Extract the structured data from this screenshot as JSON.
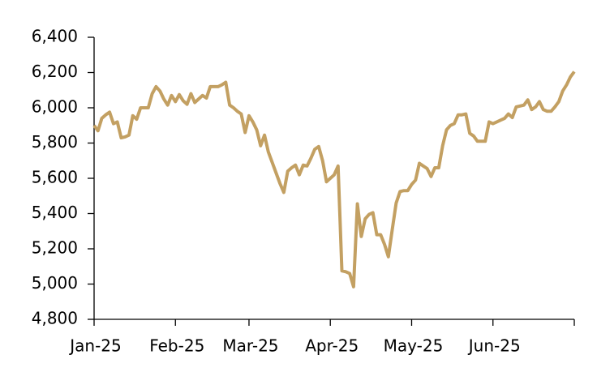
{
  "chart_data": {
    "type": "line",
    "categories": [
      "Jan-25",
      null,
      null,
      null,
      null,
      null,
      null,
      null,
      null,
      null,
      null,
      null,
      null,
      null,
      null,
      null,
      null,
      null,
      null,
      null,
      null,
      "Feb-25",
      null,
      null,
      null,
      null,
      null,
      null,
      null,
      null,
      null,
      null,
      null,
      null,
      null,
      null,
      null,
      null,
      null,
      null,
      "Mar-25",
      null,
      null,
      null,
      null,
      null,
      null,
      null,
      null,
      null,
      null,
      null,
      null,
      null,
      null,
      null,
      null,
      null,
      null,
      null,
      null,
      "Apr-25",
      null,
      null,
      null,
      null,
      null,
      null,
      null,
      null,
      null,
      null,
      null,
      null,
      null,
      null,
      null,
      null,
      null,
      null,
      null,
      null,
      "May-25",
      null,
      null,
      null,
      null,
      null,
      null,
      null,
      null,
      null,
      null,
      null,
      null,
      null,
      null,
      null,
      null,
      null,
      null,
      null,
      null,
      "Jun-25",
      null,
      null,
      null,
      null,
      null,
      null,
      null,
      null,
      null,
      null,
      null,
      null,
      null,
      null,
      null,
      null,
      null,
      null,
      null,
      null,
      null
    ],
    "values": [
      5900,
      5870,
      5940,
      5960,
      5975,
      5910,
      5920,
      5830,
      5835,
      5845,
      5955,
      5935,
      6000,
      6000,
      6000,
      6080,
      6120,
      6095,
      6050,
      6015,
      6070,
      6035,
      6075,
      6040,
      6020,
      6080,
      6030,
      6050,
      6070,
      6055,
      6120,
      6120,
      6120,
      6130,
      6145,
      6015,
      6000,
      5980,
      5965,
      5860,
      5955,
      5920,
      5875,
      5785,
      5845,
      5750,
      5690,
      5630,
      5570,
      5520,
      5640,
      5660,
      5675,
      5620,
      5675,
      5670,
      5715,
      5765,
      5780,
      5700,
      5580,
      5600,
      5620,
      5670,
      5075,
      5070,
      5060,
      4985,
      5455,
      5270,
      5370,
      5395,
      5405,
      5280,
      5280,
      5225,
      5155,
      5310,
      5460,
      5525,
      5530,
      5530,
      5565,
      5590,
      5685,
      5670,
      5655,
      5610,
      5660,
      5660,
      5785,
      5875,
      5900,
      5910,
      5960,
      5960,
      5965,
      5855,
      5840,
      5810,
      5810,
      5810,
      5920,
      5910,
      5920,
      5930,
      5940,
      5965,
      5945,
      6005,
      6010,
      6015,
      6045,
      5990,
      6005,
      6035,
      5990,
      5980,
      5980,
      6005,
      6035,
      6095,
      6130,
      6175,
      6205
    ],
    "color": "#c3a062",
    "ylim": [
      4800,
      6400
    ],
    "yticks": [
      {
        "value": 4800,
        "label": "4,800"
      },
      {
        "value": 5000,
        "label": "5,000"
      },
      {
        "value": 5200,
        "label": "5,200"
      },
      {
        "value": 5400,
        "label": "5,400"
      },
      {
        "value": 5600,
        "label": "5,600"
      },
      {
        "value": 5800,
        "label": "5,800"
      },
      {
        "value": 6000,
        "label": "6,000"
      },
      {
        "value": 6200,
        "label": "6,200"
      },
      {
        "value": 6400,
        "label": "6,400"
      }
    ],
    "grid": false
  }
}
